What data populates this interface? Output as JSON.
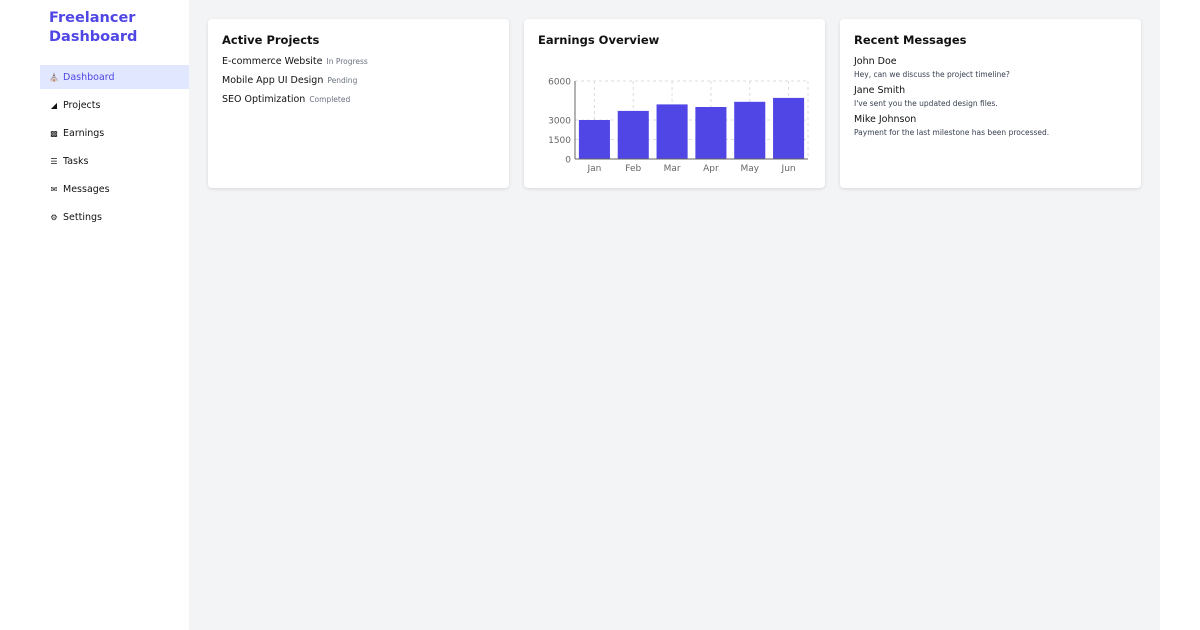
{
  "sidebar": {
    "brand": "Freelancer Dashboard",
    "items": [
      {
        "label": "Dashboard",
        "icon": "home-icon",
        "active": true
      },
      {
        "label": "Projects",
        "icon": "project-diagram-icon"
      },
      {
        "label": "Earnings",
        "icon": "money-bill-icon"
      },
      {
        "label": "Tasks",
        "icon": "tasks-icon"
      },
      {
        "label": "Messages",
        "icon": "envelope-icon"
      },
      {
        "label": "Settings",
        "icon": "gear-icon"
      }
    ]
  },
  "projects": {
    "title": "Active Projects",
    "items": [
      {
        "name": "E-commerce Website",
        "status": "In Progress"
      },
      {
        "name": "Mobile App UI Design",
        "status": "Pending"
      },
      {
        "name": "SEO Optimization",
        "status": "Completed"
      }
    ]
  },
  "earnings": {
    "title": "Earnings Overview"
  },
  "chart_data": {
    "type": "bar",
    "categories": [
      "Jan",
      "Feb",
      "Mar",
      "Apr",
      "May",
      "Jun"
    ],
    "series": [
      {
        "name": "amount",
        "values": [
          3000,
          3700,
          4200,
          4000,
          4400,
          4700
        ]
      }
    ],
    "yticks": [
      0,
      1500,
      3000,
      6000
    ],
    "ylim": [
      0,
      6000
    ],
    "grid": true,
    "legend": "bottom",
    "color": "#4f46e5"
  },
  "messages": {
    "title": "Recent Messages",
    "items": [
      {
        "name": "John Doe",
        "text": "Hey, can we discuss the project timeline?"
      },
      {
        "name": "Jane Smith",
        "text": "I've sent you the updated design files."
      },
      {
        "name": "Mike Johnson",
        "text": "Payment for the last milestone has been processed."
      }
    ]
  }
}
